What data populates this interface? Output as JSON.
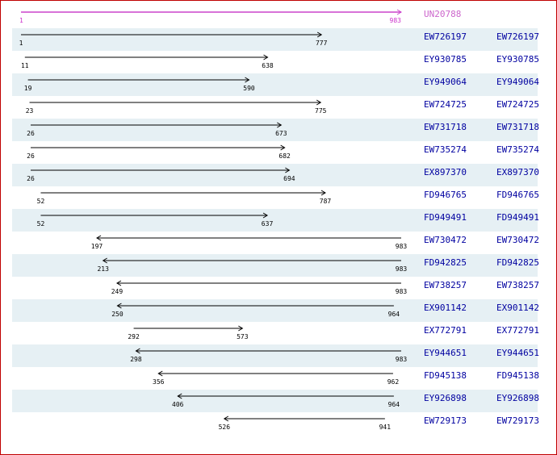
{
  "query": {
    "accession": "UN20788",
    "start": 1,
    "end": 983,
    "color": "#cc44cc"
  },
  "scale": {
    "min": 1,
    "max": 983
  },
  "colors": {
    "shade": "#e6f0f4",
    "link": "#0000a0",
    "border": "#c00000"
  },
  "alignments": [
    {
      "accession": "EW726197",
      "start": 1,
      "end": 777,
      "direction": "forward"
    },
    {
      "accession": "EY930785",
      "start": 11,
      "end": 638,
      "direction": "forward"
    },
    {
      "accession": "EY949064",
      "start": 19,
      "end": 590,
      "direction": "forward"
    },
    {
      "accession": "EW724725",
      "start": 23,
      "end": 775,
      "direction": "forward"
    },
    {
      "accession": "EW731718",
      "start": 26,
      "end": 673,
      "direction": "forward"
    },
    {
      "accession": "EW735274",
      "start": 26,
      "end": 682,
      "direction": "forward"
    },
    {
      "accession": "EX897370",
      "start": 26,
      "end": 694,
      "direction": "forward"
    },
    {
      "accession": "FD946765",
      "start": 52,
      "end": 787,
      "direction": "forward"
    },
    {
      "accession": "FD949491",
      "start": 52,
      "end": 637,
      "direction": "forward"
    },
    {
      "accession": "EW730472",
      "start": 197,
      "end": 983,
      "direction": "reverse"
    },
    {
      "accession": "FD942825",
      "start": 213,
      "end": 983,
      "direction": "reverse"
    },
    {
      "accession": "EW738257",
      "start": 249,
      "end": 983,
      "direction": "reverse"
    },
    {
      "accession": "EX901142",
      "start": 250,
      "end": 964,
      "direction": "reverse"
    },
    {
      "accession": "EX772791",
      "start": 292,
      "end": 573,
      "direction": "forward"
    },
    {
      "accession": "EY944651",
      "start": 298,
      "end": 983,
      "direction": "reverse"
    },
    {
      "accession": "FD945138",
      "start": 356,
      "end": 962,
      "direction": "reverse"
    },
    {
      "accession": "EY926898",
      "start": 406,
      "end": 964,
      "direction": "reverse"
    },
    {
      "accession": "EW729173",
      "start": 526,
      "end": 941,
      "direction": "reverse"
    }
  ]
}
